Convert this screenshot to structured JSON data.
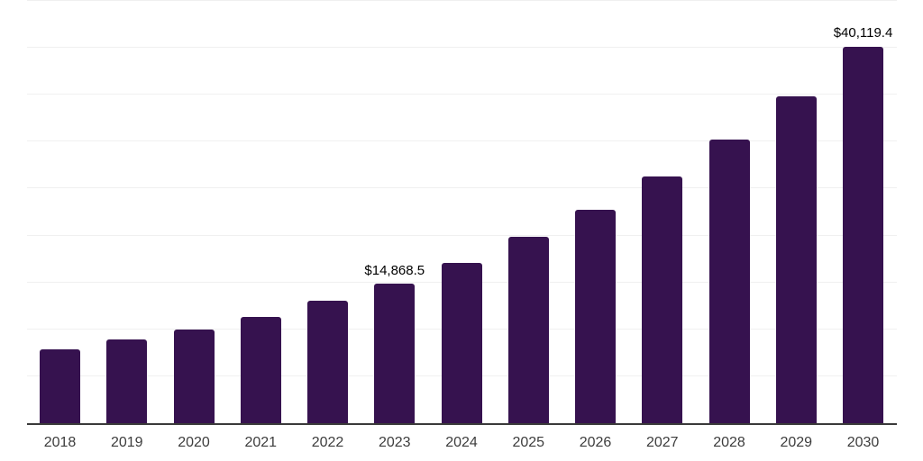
{
  "chart_data": {
    "type": "bar",
    "title": "",
    "xlabel": "",
    "ylabel": "",
    "categories": [
      "2018",
      "2019",
      "2020",
      "2021",
      "2022",
      "2023",
      "2024",
      "2025",
      "2026",
      "2027",
      "2028",
      "2029",
      "2030"
    ],
    "values": [
      7870,
      8950,
      10000,
      11350,
      13100,
      14868.5,
      17050,
      19850,
      22750,
      26300,
      30200,
      34800,
      40119.4
    ],
    "data_labels": {
      "2023": "$14,868.5",
      "2030": "$40,119.4"
    },
    "ylim": [
      0,
      45000
    ],
    "gridline_step": 5000,
    "grid": "horizontal-only",
    "legend": "none",
    "y_tick_labels": "none",
    "bar_color": "#36124F",
    "axis_line_color": "#3a3a3a",
    "gridline_color": "#f0f0f0",
    "x_tick_color": "#3d3d3d",
    "data_label_color": "#000000",
    "background_color": "#ffffff"
  }
}
